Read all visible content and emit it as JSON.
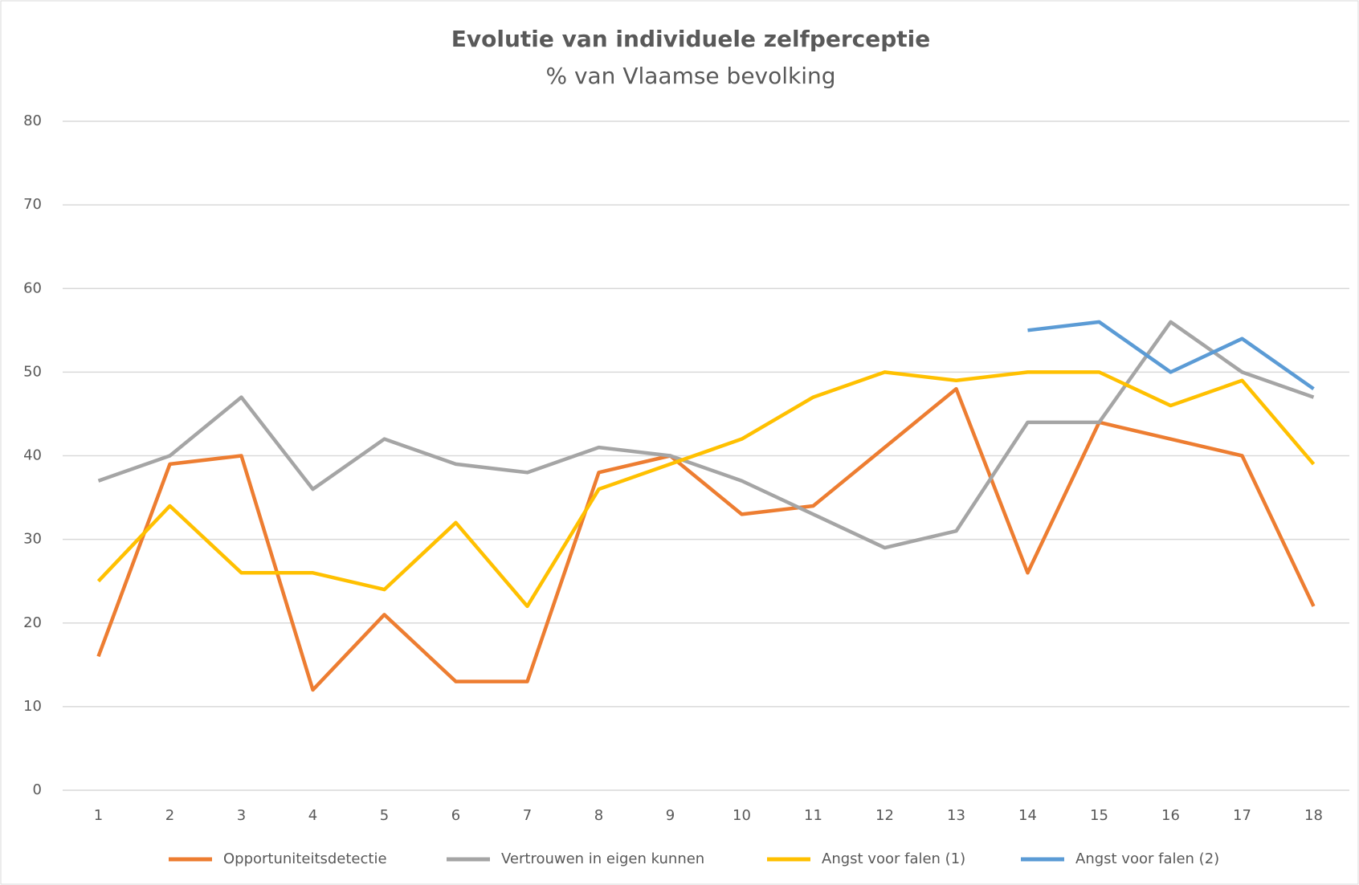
{
  "chart_data": {
    "type": "line",
    "title": "Evolutie van individuele zelfperceptie",
    "subtitle": "% van Vlaamse bevolking",
    "categories": [
      "1",
      "2",
      "3",
      "4",
      "5",
      "6",
      "7",
      "8",
      "9",
      "10",
      "11",
      "12",
      "13",
      "14",
      "15",
      "16",
      "17",
      "18"
    ],
    "series": [
      {
        "name": "Opportuniteitsdetectie",
        "color": "#ed7d31",
        "values": [
          16,
          39,
          40,
          12,
          21,
          13,
          13,
          38,
          40,
          33,
          34,
          41,
          48,
          26,
          44,
          42,
          40,
          22
        ]
      },
      {
        "name": "Vertrouwen in eigen kunnen",
        "color": "#a5a5a5",
        "values": [
          37,
          40,
          47,
          36,
          42,
          39,
          38,
          41,
          40,
          37,
          33,
          29,
          31,
          44,
          44,
          56,
          50,
          47
        ]
      },
      {
        "name": "Angst voor falen (1)",
        "color": "#ffc000",
        "values": [
          25,
          34,
          26,
          26,
          24,
          32,
          22,
          36,
          39,
          42,
          47,
          50,
          49,
          50,
          50,
          46,
          49,
          39
        ]
      },
      {
        "name": "Angst voor falen (2)",
        "color": "#5b9bd5",
        "values": [
          null,
          null,
          null,
          null,
          null,
          null,
          null,
          null,
          null,
          null,
          null,
          null,
          null,
          55,
          56,
          50,
          54,
          48
        ]
      }
    ],
    "ylim": [
      0,
      80
    ],
    "yticks": [
      0,
      10,
      20,
      30,
      40,
      50,
      60,
      70,
      80
    ],
    "grid": true,
    "legend": "bottom"
  }
}
